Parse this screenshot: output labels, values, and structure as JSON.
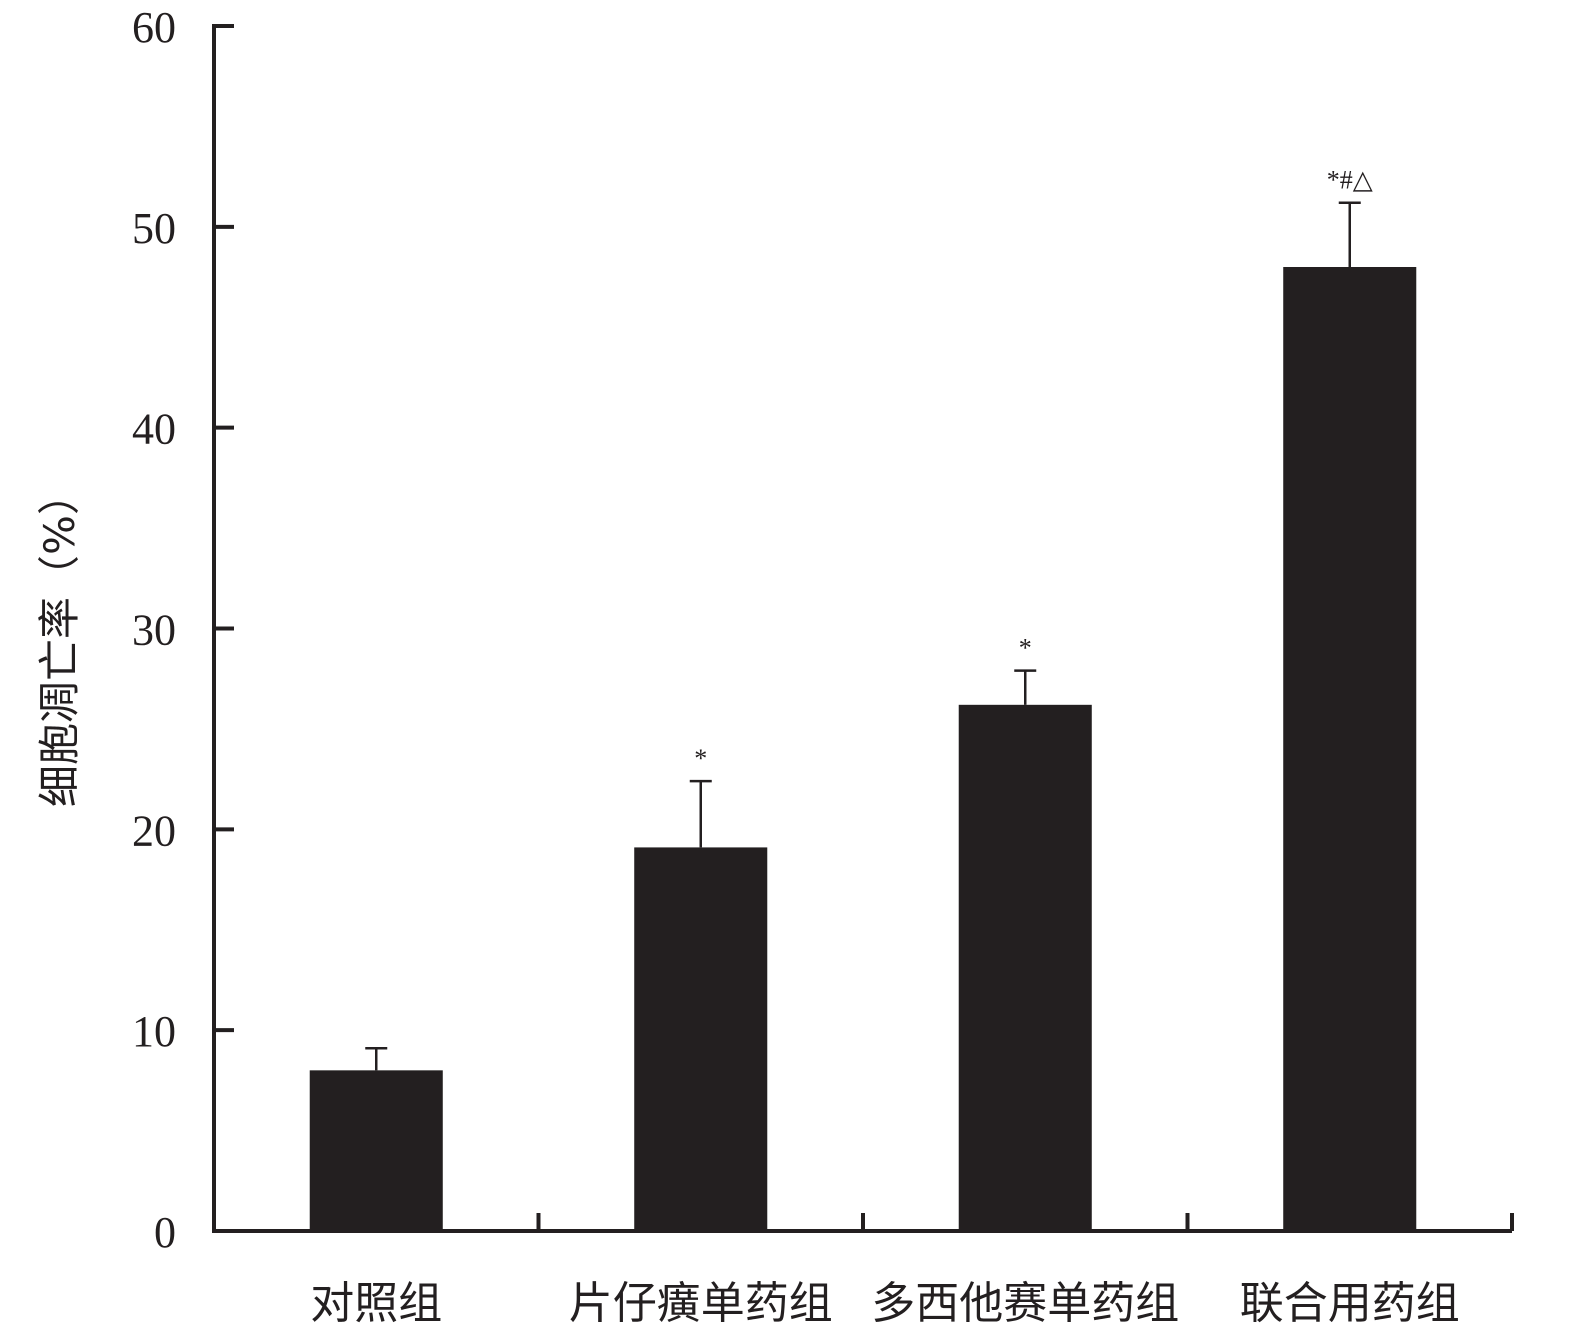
{
  "chart_data": {
    "type": "bar",
    "title": "",
    "xlabel": "",
    "ylabel": "细胞凋亡率（%）",
    "ylim": [
      0,
      60
    ],
    "yticks": [
      0,
      10,
      20,
      30,
      40,
      50,
      60
    ],
    "categories": [
      "对照组",
      "片仔癀单药组",
      "多西他赛单药组",
      "联合用药组"
    ],
    "values": [
      8.0,
      19.1,
      26.2,
      48.0
    ],
    "errors": [
      1.1,
      3.3,
      1.7,
      3.2
    ],
    "annotations": [
      "",
      "*",
      "*",
      "*#△"
    ],
    "grid": false,
    "legend": "none",
    "bar_color": "#231f20",
    "axis_color": "#231f20"
  }
}
